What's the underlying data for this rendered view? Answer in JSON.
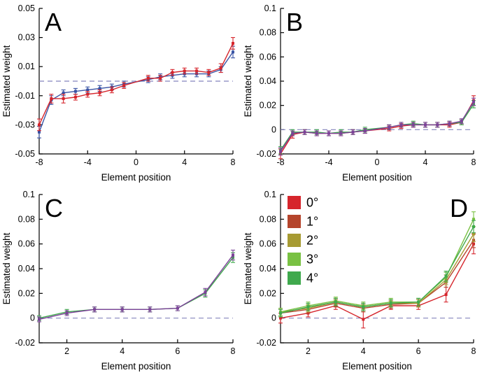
{
  "figure": {
    "background": "#ffffff",
    "zero_line_color": "#8585bd",
    "axis_color": "#000000"
  },
  "chart_data": [
    {
      "type": "line",
      "panel": "A",
      "letter": "A",
      "letter_pos": "tl",
      "xlabel": "Element position",
      "ylabel": "Estimated weight",
      "xlim": [
        -8,
        8
      ],
      "ylim": [
        -0.05,
        0.05
      ],
      "xtick_vals": [
        -8,
        -4,
        0,
        4,
        8
      ],
      "xtick_labels": [
        "-8",
        "-4",
        "0",
        "4",
        "8"
      ],
      "ytick_vals": [
        -0.05,
        -0.03,
        -0.01,
        0.01,
        0.03,
        0.05
      ],
      "ytick_labels": [
        "-0.05",
        "-0.03",
        "-0.01",
        "0.01",
        "0.03",
        "0.05"
      ],
      "zero_line": 0,
      "grid": false,
      "x": [
        -8,
        -7,
        -6,
        -5,
        -4,
        -3,
        -2,
        -1,
        1,
        2,
        3,
        4,
        5,
        6,
        7,
        8
      ],
      "series": [
        {
          "name": "condition-blue",
          "color": "#3953a4",
          "values": [
            -0.035,
            -0.013,
            -0.008,
            -0.007,
            -0.006,
            -0.005,
            -0.004,
            -0.002,
            0.001,
            0.003,
            0.004,
            0.005,
            0.005,
            0.005,
            0.008,
            0.02
          ],
          "errors": [
            0.004,
            0.003,
            0.002,
            0.002,
            0.002,
            0.002,
            0.002,
            0.002,
            0.002,
            0.002,
            0.002,
            0.002,
            0.002,
            0.002,
            0.002,
            0.004
          ]
        },
        {
          "name": "condition-red",
          "color": "#d6252c",
          "values": [
            -0.03,
            -0.012,
            -0.012,
            -0.011,
            -0.009,
            -0.008,
            -0.006,
            -0.003,
            0.002,
            0.002,
            0.006,
            0.007,
            0.007,
            0.006,
            0.009,
            0.026
          ],
          "errors": [
            0.004,
            0.003,
            0.003,
            0.002,
            0.002,
            0.002,
            0.002,
            0.002,
            0.002,
            0.002,
            0.002,
            0.002,
            0.002,
            0.002,
            0.003,
            0.004
          ]
        }
      ]
    },
    {
      "type": "line",
      "panel": "B",
      "letter": "B",
      "letter_pos": "tl",
      "xlabel": "Element position",
      "ylabel": "Estimated weight",
      "xlim": [
        -8,
        8
      ],
      "ylim": [
        -0.02,
        0.1
      ],
      "xtick_vals": [
        -8,
        -4,
        0,
        4,
        8
      ],
      "xtick_labels": [
        "-8",
        "-4",
        "0",
        "4",
        "8"
      ],
      "ytick_vals": [
        -0.02,
        0,
        0.02,
        0.04,
        0.06,
        0.08,
        0.1
      ],
      "ytick_labels": [
        "-0.02",
        "0",
        "0.02",
        "0.04",
        "0.06",
        "0.08",
        "0.1"
      ],
      "zero_line": 0,
      "grid": false,
      "x": [
        -8,
        -7,
        -6,
        -5,
        -4,
        -3,
        -2,
        -1,
        1,
        2,
        3,
        4,
        5,
        6,
        7,
        8
      ],
      "series": [
        {
          "name": "condition-red",
          "color": "#d6252c",
          "values": [
            -0.02,
            -0.004,
            -0.002,
            -0.003,
            -0.003,
            -0.003,
            -0.002,
            -0.001,
            0.001,
            0.003,
            0.004,
            0.004,
            0.004,
            0.004,
            0.006,
            0.024
          ],
          "errors": [
            0.004,
            0.003,
            0.002,
            0.002,
            0.002,
            0.002,
            0.002,
            0.002,
            0.002,
            0.002,
            0.002,
            0.002,
            0.002,
            0.002,
            0.002,
            0.004
          ]
        },
        {
          "name": "condition-green",
          "color": "#3fa94d",
          "values": [
            -0.017,
            -0.002,
            -0.002,
            -0.002,
            -0.003,
            -0.002,
            -0.002,
            0.0,
            0.002,
            0.004,
            0.005,
            0.004,
            0.004,
            0.005,
            0.006,
            0.021
          ],
          "errors": [
            0.003,
            0.002,
            0.002,
            0.002,
            0.002,
            0.002,
            0.002,
            0.002,
            0.002,
            0.002,
            0.002,
            0.002,
            0.002,
            0.002,
            0.002,
            0.003
          ]
        },
        {
          "name": "condition-purple",
          "color": "#7c4199",
          "values": [
            -0.018,
            -0.003,
            -0.002,
            -0.003,
            -0.003,
            -0.003,
            -0.002,
            -0.001,
            0.002,
            0.004,
            0.004,
            0.004,
            0.004,
            0.005,
            0.007,
            0.023
          ],
          "errors": [
            0.003,
            0.002,
            0.002,
            0.002,
            0.002,
            0.002,
            0.002,
            0.002,
            0.002,
            0.002,
            0.002,
            0.002,
            0.002,
            0.002,
            0.002,
            0.003
          ]
        }
      ]
    },
    {
      "type": "line",
      "panel": "C",
      "letter": "C",
      "letter_pos": "tl",
      "xlabel": "Element position",
      "ylabel": "Estimated weight",
      "xlim": [
        1,
        8
      ],
      "ylim": [
        -0.02,
        0.1
      ],
      "xtick_vals": [
        2,
        4,
        6,
        8
      ],
      "xtick_labels": [
        "2",
        "4",
        "6",
        "8"
      ],
      "ytick_vals": [
        -0.02,
        0,
        0.02,
        0.04,
        0.06,
        0.08,
        0.1
      ],
      "ytick_labels": [
        "-0.02",
        "0",
        "0.02",
        "0.04",
        "0.06",
        "0.08",
        "0.1"
      ],
      "zero_line": 0,
      "grid": false,
      "x": [
        1,
        2,
        3,
        4,
        5,
        6,
        7,
        8
      ],
      "series": [
        {
          "name": "condition-green",
          "color": "#3fa94d",
          "values": [
            0.0,
            0.005,
            0.007,
            0.007,
            0.007,
            0.008,
            0.02,
            0.049
          ],
          "errors": [
            0.002,
            0.002,
            0.002,
            0.002,
            0.002,
            0.002,
            0.003,
            0.004
          ]
        },
        {
          "name": "condition-purple",
          "color": "#7c4199",
          "values": [
            -0.001,
            0.004,
            0.007,
            0.007,
            0.007,
            0.008,
            0.021,
            0.051
          ],
          "errors": [
            0.002,
            0.002,
            0.002,
            0.002,
            0.002,
            0.002,
            0.003,
            0.004
          ]
        }
      ]
    },
    {
      "type": "line",
      "panel": "D",
      "letter": "D",
      "letter_pos": "tr",
      "xlabel": "Element position",
      "ylabel": "Estimated weight",
      "xlim": [
        1,
        8
      ],
      "ylim": [
        -0.02,
        0.1
      ],
      "xtick_vals": [
        2,
        4,
        6,
        8
      ],
      "xtick_labels": [
        "2",
        "4",
        "6",
        "8"
      ],
      "ytick_vals": [
        -0.02,
        0,
        0.02,
        0.04,
        0.06,
        0.08,
        0.1
      ],
      "ytick_labels": [
        "-0.02",
        "0",
        "0.02",
        "0.04",
        "0.06",
        "0.08",
        "0.1"
      ],
      "zero_line": 0,
      "grid": false,
      "legend": {
        "position": "top-left",
        "labels": [
          "0°",
          "1°",
          "2°",
          "3°",
          "4°"
        ]
      },
      "x": [
        1,
        2,
        3,
        4,
        5,
        6,
        7,
        8
      ],
      "series": [
        {
          "name": "0°",
          "color": "#d6252c",
          "values": [
            0.0,
            0.004,
            0.01,
            -0.001,
            0.01,
            0.01,
            0.019,
            0.06
          ],
          "errors": [
            0.004,
            0.003,
            0.003,
            0.007,
            0.003,
            0.003,
            0.006,
            0.008
          ]
        },
        {
          "name": "1°",
          "color": "#b5452c",
          "values": [
            0.004,
            0.007,
            0.012,
            0.008,
            0.011,
            0.012,
            0.029,
            0.063
          ],
          "errors": [
            0.003,
            0.003,
            0.003,
            0.003,
            0.003,
            0.003,
            0.004,
            0.006
          ]
        },
        {
          "name": "2°",
          "color": "#a79b33",
          "values": [
            0.005,
            0.008,
            0.013,
            0.009,
            0.012,
            0.012,
            0.031,
            0.068
          ],
          "errors": [
            0.003,
            0.003,
            0.003,
            0.003,
            0.003,
            0.003,
            0.004,
            0.006
          ]
        },
        {
          "name": "3°",
          "color": "#79c143",
          "values": [
            0.005,
            0.01,
            0.014,
            0.01,
            0.013,
            0.013,
            0.033,
            0.08
          ],
          "errors": [
            0.003,
            0.003,
            0.003,
            0.003,
            0.003,
            0.003,
            0.004,
            0.006
          ]
        },
        {
          "name": "4°",
          "color": "#3fa94d",
          "values": [
            0.004,
            0.009,
            0.013,
            0.009,
            0.012,
            0.013,
            0.034,
            0.074
          ],
          "errors": [
            0.003,
            0.003,
            0.003,
            0.003,
            0.003,
            0.003,
            0.004,
            0.005
          ]
        }
      ]
    }
  ]
}
